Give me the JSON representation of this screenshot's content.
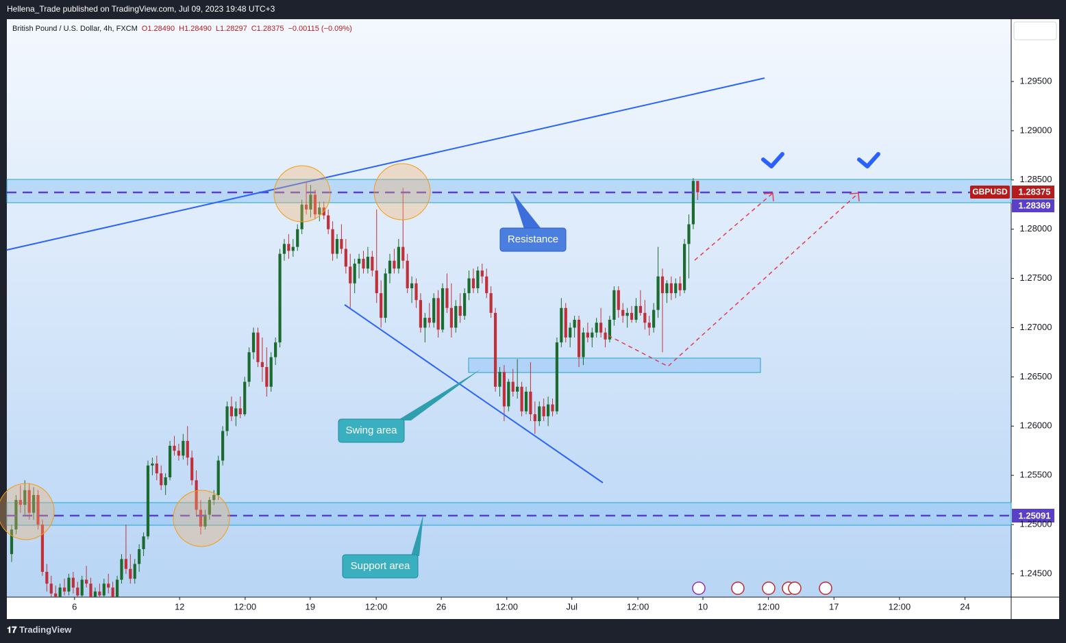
{
  "header": {
    "publisher": "Hellena_Trade published on TradingView.com, Jul 09, 2023 19:48 UTC+3"
  },
  "footer": {
    "brand": "TradingView"
  },
  "chart_data": {
    "type": "candlestick",
    "title": "British Pound / U.S. Dollar, 4h, FXCM",
    "quote": [
      "O1.28490",
      "H1.28490",
      "L1.28297",
      "C1.28375",
      "−0.00115 (−0.09%)"
    ],
    "up_color": "#1b6b2f",
    "down_color": "#c0303a",
    "ylim": [
      1.24263,
      1.30133
    ],
    "yticks": [
      {
        "value": 1.295,
        "label": "1.29500"
      },
      {
        "value": 1.29,
        "label": "1.29000"
      },
      {
        "value": 1.285,
        "label": "1.28500"
      },
      {
        "value": 1.28,
        "label": "1.28000"
      },
      {
        "value": 1.275,
        "label": "1.27500"
      },
      {
        "value": 1.27,
        "label": "1.27000"
      },
      {
        "value": 1.265,
        "label": "1.26500"
      },
      {
        "value": 1.26,
        "label": "1.26000"
      },
      {
        "value": 1.255,
        "label": "1.25500"
      },
      {
        "value": 1.25,
        "label": "1.25000"
      },
      {
        "value": 1.245,
        "label": "1.24500"
      }
    ],
    "xlim": [
      -1.09,
      227.3
    ],
    "xticks": [
      {
        "value": 14.3,
        "label": "6"
      },
      {
        "value": 38.2,
        "label": "12"
      },
      {
        "value": 53.1,
        "label": "12:00"
      },
      {
        "value": 67.9,
        "label": "19"
      },
      {
        "value": 82.9,
        "label": "12:00"
      },
      {
        "value": 97.7,
        "label": "26"
      },
      {
        "value": 112.6,
        "label": "12:00"
      },
      {
        "value": 127.4,
        "label": "Jul"
      },
      {
        "value": 142.4,
        "label": "12:00"
      },
      {
        "value": 157.2,
        "label": "10"
      },
      {
        "value": 172.1,
        "label": "12:00"
      },
      {
        "value": 187.0,
        "label": "17"
      },
      {
        "value": 201.9,
        "label": "12:00"
      },
      {
        "value": 216.8,
        "label": "24"
      }
    ],
    "price_labels": {
      "symbol": "GBPUSD",
      "last": "1.28375",
      "other": "1.28369",
      "support": "1.25091"
    },
    "annotations": {
      "resistance": "Resistance",
      "swing": "Swing area",
      "support": "Support area"
    },
    "ohlc": [
      [
        1.247,
        1.25,
        1.2462,
        1.2495
      ],
      [
        1.2495,
        1.253,
        1.249,
        1.2525
      ],
      [
        1.2525,
        1.254,
        1.2512,
        1.252
      ],
      [
        1.252,
        1.2545,
        1.251,
        1.2535
      ],
      [
        1.2535,
        1.2542,
        1.2505,
        1.2512
      ],
      [
        1.2512,
        1.2538,
        1.2505,
        1.253
      ],
      [
        1.253,
        1.2535,
        1.2495,
        1.25
      ],
      [
        1.25,
        1.2505,
        1.2448,
        1.2452
      ],
      [
        1.2452,
        1.246,
        1.2432,
        1.244
      ],
      [
        1.244,
        1.2448,
        1.2425,
        1.243
      ],
      [
        1.243,
        1.2438,
        1.2418,
        1.2425
      ],
      [
        1.2425,
        1.244,
        1.242,
        1.2436
      ],
      [
        1.2436,
        1.2445,
        1.2428,
        1.2432
      ],
      [
        1.2432,
        1.245,
        1.2428,
        1.2446
      ],
      [
        1.2446,
        1.2452,
        1.243,
        1.2436
      ],
      [
        1.2436,
        1.2442,
        1.242,
        1.2428
      ],
      [
        1.2428,
        1.2448,
        1.2424,
        1.2444
      ],
      [
        1.2444,
        1.2458,
        1.2436,
        1.244
      ],
      [
        1.244,
        1.2446,
        1.2418,
        1.2424
      ],
      [
        1.2424,
        1.2436,
        1.2415,
        1.2432
      ],
      [
        1.2432,
        1.244,
        1.2422,
        1.2428
      ],
      [
        1.2428,
        1.2445,
        1.2425,
        1.244
      ],
      [
        1.244,
        1.245,
        1.243,
        1.2436
      ],
      [
        1.2436,
        1.2442,
        1.242,
        1.2426
      ],
      [
        1.2426,
        1.2448,
        1.2422,
        1.2444
      ],
      [
        1.2444,
        1.247,
        1.244,
        1.2465
      ],
      [
        1.2465,
        1.25,
        1.245,
        1.2455
      ],
      [
        1.2455,
        1.247,
        1.244,
        1.2445
      ],
      [
        1.2445,
        1.2465,
        1.244,
        1.246
      ],
      [
        1.246,
        1.248,
        1.2452,
        1.2475
      ],
      [
        1.2475,
        1.2492,
        1.2468,
        1.2488
      ],
      [
        1.2488,
        1.2565,
        1.2485,
        1.256
      ],
      [
        1.256,
        1.2568,
        1.255,
        1.2562
      ],
      [
        1.2562,
        1.257,
        1.2545,
        1.2552
      ],
      [
        1.2552,
        1.256,
        1.2535,
        1.254
      ],
      [
        1.254,
        1.2552,
        1.253,
        1.2548
      ],
      [
        1.2548,
        1.2585,
        1.2545,
        1.258
      ],
      [
        1.258,
        1.259,
        1.257,
        1.2575
      ],
      [
        1.2575,
        1.2582,
        1.2565,
        1.257
      ],
      [
        1.257,
        1.2592,
        1.2566,
        1.2585
      ],
      [
        1.2585,
        1.26,
        1.256,
        1.2568
      ],
      [
        1.2568,
        1.2575,
        1.254,
        1.2545
      ],
      [
        1.2545,
        1.2555,
        1.251,
        1.2515
      ],
      [
        1.2515,
        1.2525,
        1.249,
        1.2498
      ],
      [
        1.2498,
        1.2515,
        1.2495,
        1.251
      ],
      [
        1.251,
        1.2528,
        1.2505,
        1.2525
      ],
      [
        1.2525,
        1.2535,
        1.252,
        1.253
      ],
      [
        1.253,
        1.257,
        1.2525,
        1.2565
      ],
      [
        1.2565,
        1.26,
        1.256,
        1.2595
      ],
      [
        1.2595,
        1.2625,
        1.259,
        1.262
      ],
      [
        1.262,
        1.263,
        1.2605,
        1.261
      ],
      [
        1.261,
        1.2625,
        1.26,
        1.2618
      ],
      [
        1.2618,
        1.263,
        1.2608,
        1.2612
      ],
      [
        1.2612,
        1.265,
        1.261,
        1.2645
      ],
      [
        1.2645,
        1.268,
        1.264,
        1.2675
      ],
      [
        1.2675,
        1.27,
        1.2668,
        1.2695
      ],
      [
        1.2695,
        1.27,
        1.266,
        1.2665
      ],
      [
        1.2665,
        1.269,
        1.2645,
        1.266
      ],
      [
        1.266,
        1.268,
        1.263,
        1.264
      ],
      [
        1.264,
        1.2675,
        1.2635,
        1.267
      ],
      [
        1.267,
        1.269,
        1.2662,
        1.2685
      ],
      [
        1.2685,
        1.278,
        1.268,
        1.2775
      ],
      [
        1.2775,
        1.279,
        1.2768,
        1.2785
      ],
      [
        1.2785,
        1.2795,
        1.277,
        1.2778
      ],
      [
        1.2778,
        1.279,
        1.2772,
        1.2782
      ],
      [
        1.2782,
        1.2805,
        1.2778,
        1.28
      ],
      [
        1.28,
        1.283,
        1.2795,
        1.2825
      ],
      [
        1.2825,
        1.2848,
        1.2815,
        1.282
      ],
      [
        1.282,
        1.2845,
        1.2812,
        1.2835
      ],
      [
        1.2835,
        1.284,
        1.281,
        1.2815
      ],
      [
        1.2815,
        1.2828,
        1.2808,
        1.2822
      ],
      [
        1.2822,
        1.2828,
        1.281,
        1.2814
      ],
      [
        1.2814,
        1.282,
        1.2795,
        1.28
      ],
      [
        1.28,
        1.2808,
        1.2768,
        1.2775
      ],
      [
        1.2775,
        1.2795,
        1.277,
        1.279
      ],
      [
        1.279,
        1.2805,
        1.2775,
        1.278
      ],
      [
        1.278,
        1.279,
        1.2755,
        1.2762
      ],
      [
        1.2762,
        1.2775,
        1.272,
        1.2745
      ],
      [
        1.2745,
        1.277,
        1.2735,
        1.2765
      ],
      [
        1.2765,
        1.2775,
        1.275,
        1.277
      ],
      [
        1.277,
        1.2778,
        1.2755,
        1.276
      ],
      [
        1.276,
        1.2782,
        1.2755,
        1.2772
      ],
      [
        1.2772,
        1.2778,
        1.2752,
        1.2758
      ],
      [
        1.2758,
        1.282,
        1.2725,
        1.2735
      ],
      [
        1.2735,
        1.2748,
        1.27,
        1.271
      ],
      [
        1.271,
        1.276,
        1.2705,
        1.2755
      ],
      [
        1.2755,
        1.2775,
        1.2745,
        1.2768
      ],
      [
        1.2768,
        1.278,
        1.2755,
        1.276
      ],
      [
        1.276,
        1.279,
        1.2755,
        1.2782
      ],
      [
        1.2782,
        1.2842,
        1.276,
        1.2768
      ],
      [
        1.2768,
        1.2775,
        1.2735,
        1.274
      ],
      [
        1.274,
        1.2752,
        1.2725,
        1.2745
      ],
      [
        1.2745,
        1.275,
        1.272,
        1.2728
      ],
      [
        1.2728,
        1.2735,
        1.2695,
        1.27
      ],
      [
        1.27,
        1.2715,
        1.2685,
        1.271
      ],
      [
        1.271,
        1.2725,
        1.27,
        1.2705
      ],
      [
        1.2705,
        1.2735,
        1.27,
        1.273
      ],
      [
        1.273,
        1.2738,
        1.269,
        1.2698
      ],
      [
        1.2698,
        1.2745,
        1.2695,
        1.274
      ],
      [
        1.274,
        1.2755,
        1.2715,
        1.272
      ],
      [
        1.272,
        1.2745,
        1.269,
        1.27
      ],
      [
        1.27,
        1.2728,
        1.2695,
        1.2722
      ],
      [
        1.2722,
        1.2735,
        1.2705,
        1.2712
      ],
      [
        1.2712,
        1.274,
        1.2708,
        1.2735
      ],
      [
        1.2735,
        1.2758,
        1.2728,
        1.275
      ],
      [
        1.275,
        1.276,
        1.2735,
        1.274
      ],
      [
        1.274,
        1.2762,
        1.2735,
        1.2758
      ],
      [
        1.2758,
        1.2765,
        1.2745,
        1.2752
      ],
      [
        1.2752,
        1.276,
        1.273,
        1.2735
      ],
      [
        1.2735,
        1.2742,
        1.271,
        1.2715
      ],
      [
        1.2715,
        1.272,
        1.2635,
        1.264
      ],
      [
        1.264,
        1.266,
        1.263,
        1.2655
      ],
      [
        1.2655,
        1.2662,
        1.2605,
        1.262
      ],
      [
        1.262,
        1.2648,
        1.2615,
        1.2645
      ],
      [
        1.2645,
        1.2658,
        1.263,
        1.2635
      ],
      [
        1.2635,
        1.2668,
        1.2628,
        1.264
      ],
      [
        1.264,
        1.2645,
        1.261,
        1.2615
      ],
      [
        1.2615,
        1.264,
        1.2612,
        1.2635
      ],
      [
        1.2635,
        1.2665,
        1.2605,
        1.2612
      ],
      [
        1.2612,
        1.2625,
        1.2592,
        1.2605
      ],
      [
        1.2605,
        1.2625,
        1.26,
        1.262
      ],
      [
        1.262,
        1.2628,
        1.2605,
        1.261
      ],
      [
        1.261,
        1.263,
        1.26,
        1.2622
      ],
      [
        1.2622,
        1.2628,
        1.261,
        1.2615
      ],
      [
        1.2615,
        1.269,
        1.2612,
        1.2685
      ],
      [
        1.2685,
        1.273,
        1.268,
        1.272
      ],
      [
        1.272,
        1.2725,
        1.2685,
        1.269
      ],
      [
        1.269,
        1.2705,
        1.268,
        1.27
      ],
      [
        1.27,
        1.2712,
        1.269,
        1.2708
      ],
      [
        1.2708,
        1.2712,
        1.266,
        1.267
      ],
      [
        1.267,
        1.27,
        1.2662,
        1.2695
      ],
      [
        1.2695,
        1.2705,
        1.2685,
        1.269
      ],
      [
        1.269,
        1.27,
        1.268,
        1.2695
      ],
      [
        1.2695,
        1.271,
        1.269,
        1.2705
      ],
      [
        1.2705,
        1.272,
        1.269,
        1.2695
      ],
      [
        1.2695,
        1.27,
        1.268,
        1.2688
      ],
      [
        1.2688,
        1.2712,
        1.2685,
        1.2708
      ],
      [
        1.2708,
        1.2742,
        1.2702,
        1.2738
      ],
      [
        1.2738,
        1.2742,
        1.271,
        1.2718
      ],
      [
        1.2718,
        1.2725,
        1.2705,
        1.2712
      ],
      [
        1.2712,
        1.272,
        1.27,
        1.2715
      ],
      [
        1.2715,
        1.2722,
        1.2705,
        1.2708
      ],
      [
        1.2708,
        1.273,
        1.2705,
        1.2722
      ],
      [
        1.2722,
        1.2738,
        1.2712,
        1.2715
      ],
      [
        1.2715,
        1.2728,
        1.2698,
        1.2705
      ],
      [
        1.2705,
        1.2712,
        1.2692,
        1.27
      ],
      [
        1.27,
        1.2725,
        1.2695,
        1.2718
      ],
      [
        1.2718,
        1.2782,
        1.271,
        1.2752
      ],
      [
        1.2752,
        1.276,
        1.2675,
        1.2735
      ],
      [
        1.2735,
        1.2748,
        1.2725,
        1.2745
      ],
      [
        1.2745,
        1.2752,
        1.2728,
        1.2735
      ],
      [
        1.2735,
        1.275,
        1.273,
        1.2745
      ],
      [
        1.2745,
        1.2752,
        1.2732,
        1.2738
      ],
      [
        1.2738,
        1.279,
        1.2735,
        1.2785
      ],
      [
        1.2785,
        1.2815,
        1.275,
        1.2805
      ],
      [
        1.2805,
        1.2852,
        1.28,
        1.2849
      ],
      [
        1.2849,
        1.2849,
        1.28297,
        1.28375
      ]
    ]
  }
}
